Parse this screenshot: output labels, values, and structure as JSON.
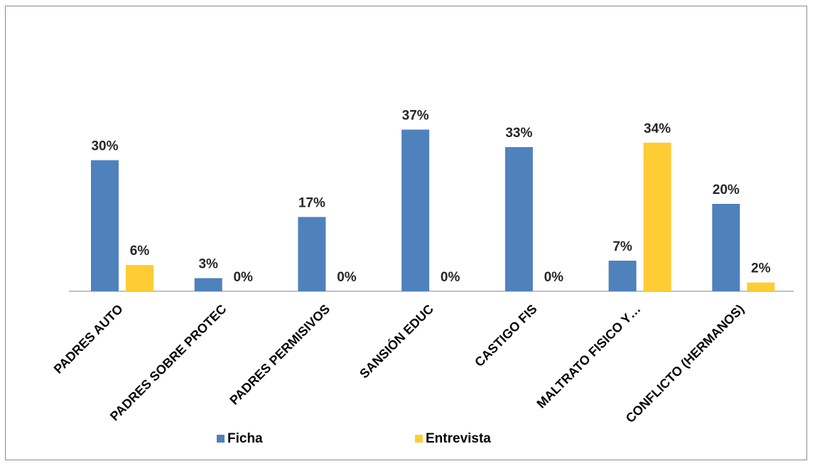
{
  "chart_data": {
    "type": "bar",
    "title": "",
    "xlabel": "",
    "ylabel": "",
    "ylim": [
      0,
      40
    ],
    "grid": false,
    "legend_position": "bottom",
    "categories": [
      "PADRES AUTO",
      "PADRES SOBRE PROTEC",
      "PADRES PERMISIVOS",
      "SANSIÓN EDUC",
      "CASTIGO FIS",
      "MALTRATO FISICO Y…",
      "CONFLICTO (HERMANOS)"
    ],
    "series": [
      {
        "name": "Ficha",
        "color": "#4f81bd",
        "values": [
          30,
          3,
          17,
          37,
          33,
          7,
          20
        ],
        "labels": [
          "30%",
          "3%",
          "17%",
          "37%",
          "33%",
          "7%",
          "20%"
        ]
      },
      {
        "name": "Entrevista",
        "color": "#ffcc33",
        "values": [
          6,
          0,
          0,
          0,
          0,
          34,
          2
        ],
        "labels": [
          "6%",
          "0%",
          "0%",
          "0%",
          "0%",
          "34%",
          "2%"
        ]
      }
    ]
  }
}
